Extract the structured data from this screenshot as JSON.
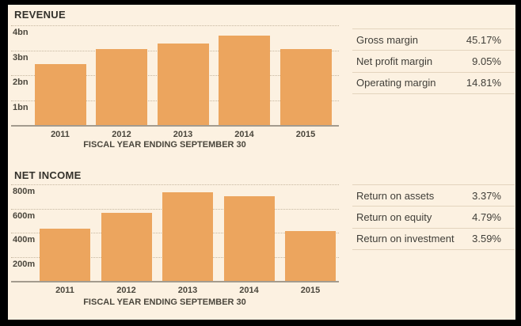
{
  "colors": {
    "background": "#fcf1e1",
    "frame": "#000000",
    "bar": "#eca55e",
    "gridline": "#c6b7a0",
    "axis_line": "#a39b8e",
    "title_text": "#33312b",
    "axis_text": "#4a463c",
    "table_line": "#e3d4bd",
    "table_text": "#403e38"
  },
  "chart_data": [
    {
      "type": "bar",
      "title": "REVENUE",
      "xlabel": "FISCAL YEAR ENDING SEPTEMBER 30",
      "categories": [
        "2011",
        "2012",
        "2013",
        "2014",
        "2015"
      ],
      "values": [
        2.45,
        3.04,
        3.28,
        3.6,
        3.05
      ],
      "unit": "bn",
      "tick_labels": [
        "4bn",
        "3bn",
        "2bn",
        "1bn"
      ],
      "tick_values": [
        4,
        3,
        2,
        1
      ],
      "ylim": [
        0,
        4
      ],
      "grid": "horizontal dotted",
      "legend": "none",
      "bar_color": "#eca55e"
    },
    {
      "type": "bar",
      "title": "NET INCOME",
      "xlabel": "FISCAL YEAR ENDING SEPTEMBER 30",
      "categories": [
        "2011",
        "2012",
        "2013",
        "2014",
        "2015"
      ],
      "values": [
        430,
        565,
        735,
        705,
        415
      ],
      "unit": "m",
      "tick_labels": [
        "800m",
        "600m",
        "400m",
        "200m"
      ],
      "tick_values": [
        800,
        600,
        400,
        200
      ],
      "ylim": [
        0,
        800
      ],
      "grid": "horizontal dotted",
      "legend": "none",
      "bar_color": "#eca55e"
    },
    {
      "type": "table",
      "rows": [
        {
          "label": "Gross margin",
          "value": "45.17%"
        },
        {
          "label": "Net profit margin",
          "value": "9.05%"
        },
        {
          "label": "Operating margin",
          "value": "14.81%"
        }
      ]
    },
    {
      "type": "table",
      "rows": [
        {
          "label": "Return on assets",
          "value": "3.37%"
        },
        {
          "label": "Return on equity",
          "value": "4.79%"
        },
        {
          "label": "Return on investment",
          "value": "3.59%"
        }
      ]
    }
  ]
}
